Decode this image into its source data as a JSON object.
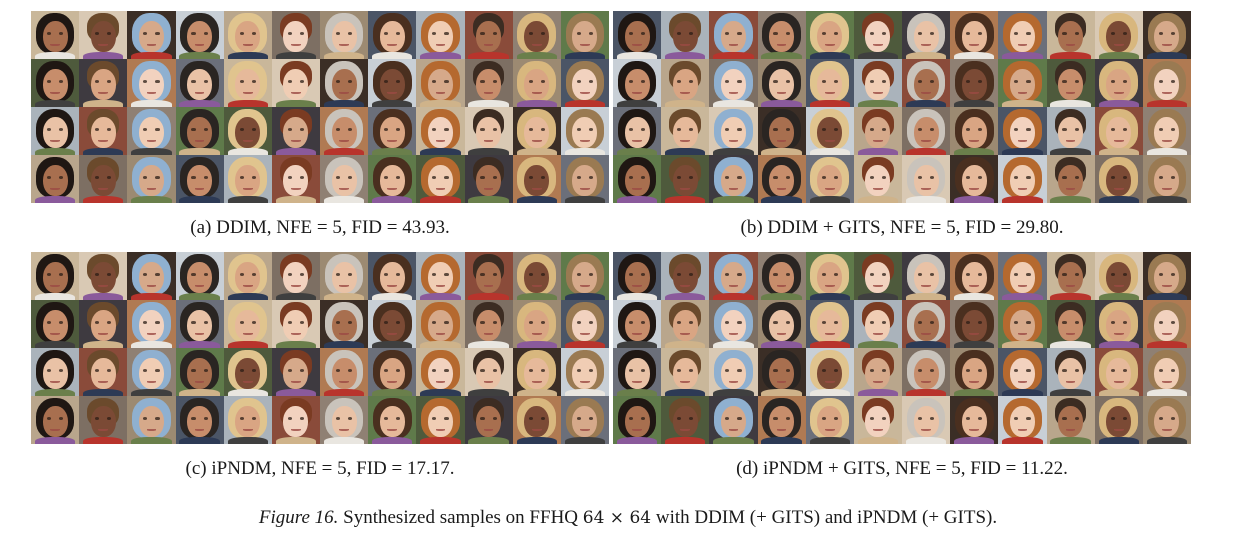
{
  "panels": [
    {
      "id": "a",
      "caption": "(a) DDIM, NFE = 5, FID = 43.93.",
      "grid_image": "face-sample-grid-4x12"
    },
    {
      "id": "b",
      "caption": "(b) DDIM + GITS, NFE = 5, FID = 29.80.",
      "grid_image": "face-sample-grid-4x12"
    },
    {
      "id": "c",
      "caption": "(c) iPNDM, NFE = 5, FID = 17.17.",
      "grid_image": "face-sample-grid-4x12"
    },
    {
      "id": "d",
      "caption": "(d) iPNDM + GITS, NFE = 5, FID = 11.22.",
      "grid_image": "face-sample-grid-4x12"
    }
  ],
  "figure": {
    "label": "Figure 16.",
    "text_before": " Synthesized samples on FFHQ ",
    "resolution": "64 × 64",
    "text_after": " with DDIM (+ GITS) and iPNDM (+ GITS)."
  },
  "palette": {
    "backgrounds": [
      "#5f7a4a",
      "#3b2e26",
      "#8a4b3a",
      "#c9b79a",
      "#4b5566",
      "#b07a52",
      "#7d6f63",
      "#4e5a3c",
      "#c8cfd6",
      "#8f8073",
      "#d9c9b4",
      "#aab3bb",
      "#6b6f7a",
      "#9c8a72",
      "#3e3a40",
      "#b9a68c"
    ],
    "hair": [
      "#4a2f1f",
      "#1f1713",
      "#7a3b22",
      "#d8b77e",
      "#2a2522",
      "#b5692f",
      "#6b4a2c",
      "#c9c3bb",
      "#9a7a52",
      "#e0c48e",
      "#3c2c22",
      "#8fb0d0"
    ],
    "skin": [
      "#e6b99a",
      "#c78d6b",
      "#f0cdb4",
      "#d9a583",
      "#a86f4f",
      "#f2d2bf",
      "#7b4a35",
      "#e9c2a6",
      "#d6a98a"
    ],
    "shirts": [
      "#2d3a55",
      "#b8342c",
      "#e9e6e0",
      "#3f3f3f",
      "#6a7f4b",
      "#8a5a9b",
      "#cfb38a"
    ]
  }
}
